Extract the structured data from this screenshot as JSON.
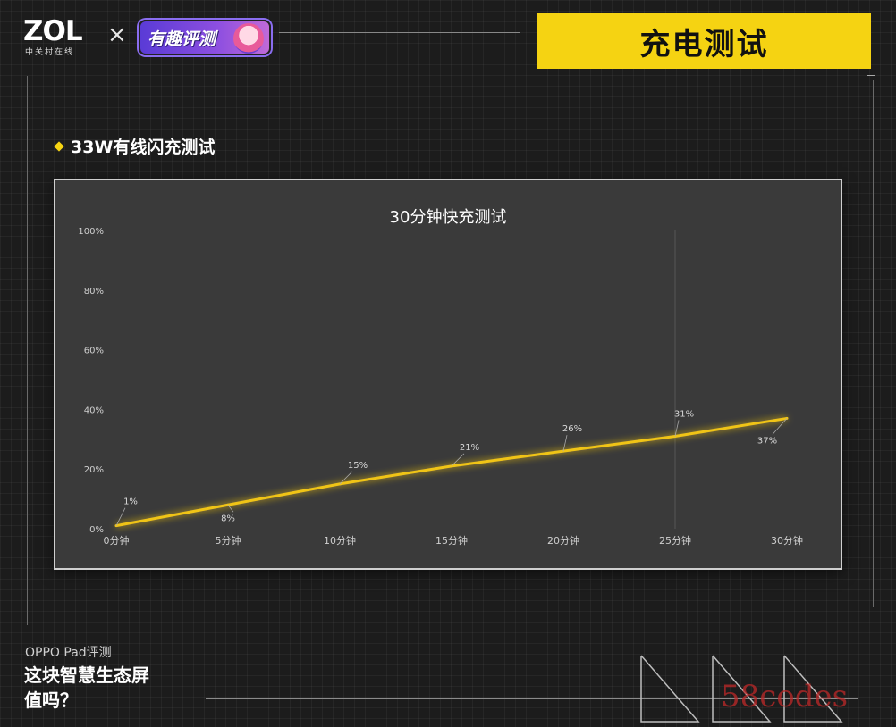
{
  "header": {
    "logo": "ZOL",
    "logo_sub": "中关村在线",
    "cross": "×",
    "badge": "有趣评测",
    "title": "充电测试"
  },
  "section_title": "33W有线闪充测试",
  "footer": {
    "line1": "OPPO Pad评测",
    "line2": "这块智慧生态屏",
    "line3": "值吗？"
  },
  "watermark": "58codes",
  "colors": {
    "accent": "#f5d312",
    "line": "#f0c419"
  },
  "chart_data": {
    "type": "line",
    "title": "30分钟快充测试",
    "categories": [
      "0分钟",
      "5分钟",
      "10分钟",
      "15分钟",
      "20分钟",
      "25分钟",
      "30分钟"
    ],
    "series": [
      {
        "values": [
          1,
          8,
          15,
          21,
          26,
          31,
          37
        ]
      }
    ],
    "data_labels": [
      "1%",
      "8%",
      "15%",
      "21%",
      "26%",
      "31%",
      "37%"
    ],
    "y_ticks": [
      "0%",
      "20%",
      "40%",
      "60%",
      "80%",
      "100%"
    ],
    "ylim": [
      0,
      100
    ],
    "grid": false,
    "legend": "none"
  }
}
